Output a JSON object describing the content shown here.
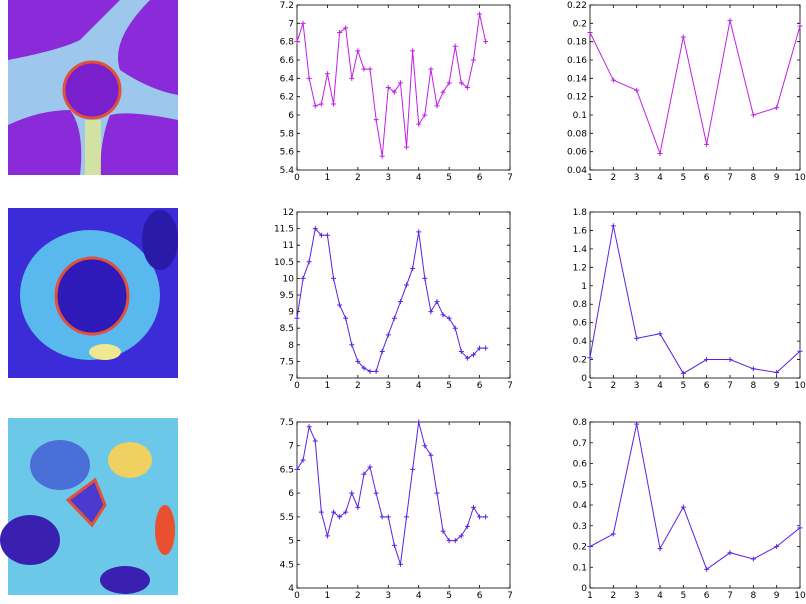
{
  "chart_data": [
    {
      "type": "line",
      "color": "#c21fe6",
      "xlim": [
        0,
        7
      ],
      "xticks": [
        0,
        1,
        2,
        3,
        4,
        5,
        6,
        7
      ],
      "ylim": [
        5.4,
        7.2
      ],
      "yticks": [
        5.4,
        5.6,
        5.8,
        6,
        6.2,
        6.4,
        6.6,
        6.8,
        7,
        7.2
      ],
      "x": [
        0,
        0.2,
        0.4,
        0.6,
        0.8,
        1,
        1.2,
        1.4,
        1.6,
        1.8,
        2,
        2.2,
        2.4,
        2.6,
        2.8,
        3,
        3.2,
        3.4,
        3.6,
        3.8,
        4,
        4.2,
        4.4,
        4.6,
        4.8,
        5,
        5.2,
        5.4,
        5.6,
        5.8,
        6,
        6.2
      ],
      "values": [
        6.8,
        7.0,
        6.4,
        6.1,
        6.12,
        6.45,
        6.12,
        6.9,
        6.95,
        6.4,
        6.7,
        6.5,
        6.5,
        5.95,
        5.55,
        6.3,
        6.25,
        6.35,
        5.65,
        6.7,
        5.9,
        6.0,
        6.5,
        6.1,
        6.25,
        6.35,
        6.75,
        6.35,
        6.3,
        6.6,
        7.1,
        6.8
      ]
    },
    {
      "type": "line",
      "color": "#c21fe6",
      "xlim": [
        1,
        10
      ],
      "xticks": [
        1,
        2,
        3,
        4,
        5,
        6,
        7,
        8,
        9,
        10
      ],
      "ylim": [
        0.04,
        0.22
      ],
      "yticks": [
        0.04,
        0.06,
        0.08,
        0.1,
        0.12,
        0.14,
        0.16,
        0.18,
        0.2,
        0.22
      ],
      "x": [
        1,
        2,
        3,
        4,
        5,
        6,
        7,
        8,
        9,
        10
      ],
      "values": [
        0.19,
        0.138,
        0.127,
        0.058,
        0.185,
        0.068,
        0.203,
        0.1,
        0.108,
        0.197
      ]
    },
    {
      "type": "line",
      "color": "#5b22e0",
      "xlim": [
        0,
        7
      ],
      "xticks": [
        0,
        1,
        2,
        3,
        4,
        5,
        6,
        7
      ],
      "ylim": [
        7,
        12
      ],
      "yticks": [
        7,
        7.5,
        8,
        8.5,
        9,
        9.5,
        10,
        10.5,
        11,
        11.5,
        12
      ],
      "x": [
        0,
        0.2,
        0.4,
        0.6,
        0.8,
        1,
        1.2,
        1.4,
        1.6,
        1.8,
        2,
        2.2,
        2.4,
        2.6,
        2.8,
        3,
        3.2,
        3.4,
        3.6,
        3.8,
        4,
        4.2,
        4.4,
        4.6,
        4.8,
        5,
        5.2,
        5.4,
        5.6,
        5.8,
        6,
        6.2
      ],
      "values": [
        8.8,
        10,
        10.5,
        11.5,
        11.3,
        11.3,
        10,
        9.2,
        8.8,
        8.0,
        7.5,
        7.3,
        7.2,
        7.2,
        7.8,
        8.3,
        8.8,
        9.3,
        9.8,
        10.3,
        11.4,
        10.0,
        9.0,
        9.3,
        8.9,
        8.8,
        8.5,
        7.8,
        7.6,
        7.7,
        7.9,
        7.9
      ]
    },
    {
      "type": "line",
      "color": "#5b22e0",
      "xlim": [
        1,
        10
      ],
      "xticks": [
        1,
        2,
        3,
        4,
        5,
        6,
        7,
        8,
        9,
        10
      ],
      "ylim": [
        0,
        1.8
      ],
      "yticks": [
        0,
        0.2,
        0.4,
        0.6,
        0.8,
        1,
        1.2,
        1.4,
        1.6,
        1.8
      ],
      "x": [
        1,
        2,
        3,
        4,
        5,
        6,
        7,
        8,
        9,
        10
      ],
      "values": [
        0.22,
        1.65,
        0.43,
        0.48,
        0.05,
        0.2,
        0.2,
        0.1,
        0.06,
        0.29
      ]
    },
    {
      "type": "line",
      "color": "#5b22e0",
      "xlim": [
        0,
        7
      ],
      "xticks": [
        0,
        1,
        2,
        3,
        4,
        5,
        6,
        7
      ],
      "ylim": [
        4,
        7.5
      ],
      "yticks": [
        4,
        4.5,
        5,
        5.5,
        6,
        6.5,
        7,
        7.5
      ],
      "x": [
        0,
        0.2,
        0.4,
        0.6,
        0.8,
        1,
        1.2,
        1.4,
        1.6,
        1.8,
        2,
        2.2,
        2.4,
        2.6,
        2.8,
        3,
        3.2,
        3.4,
        3.6,
        3.8,
        4,
        4.2,
        4.4,
        4.6,
        4.8,
        5,
        5.2,
        5.4,
        5.6,
        5.8,
        6,
        6.2
      ],
      "values": [
        6.5,
        6.7,
        7.4,
        7.1,
        5.6,
        5.1,
        5.6,
        5.5,
        5.6,
        6.0,
        5.7,
        6.4,
        6.55,
        6.0,
        5.5,
        5.5,
        4.9,
        4.5,
        5.5,
        6.5,
        7.5,
        7.0,
        6.8,
        6.0,
        5.2,
        5.0,
        5.0,
        5.1,
        5.3,
        5.7,
        5.5,
        5.5
      ]
    },
    {
      "type": "line",
      "color": "#5b22e0",
      "xlim": [
        1,
        10
      ],
      "xticks": [
        1,
        2,
        3,
        4,
        5,
        6,
        7,
        8,
        9,
        10
      ],
      "ylim": [
        0,
        0.8
      ],
      "yticks": [
        0,
        0.1,
        0.2,
        0.3,
        0.4,
        0.5,
        0.6,
        0.7,
        0.8
      ],
      "x": [
        1,
        2,
        3,
        4,
        5,
        6,
        7,
        8,
        9,
        10
      ],
      "values": [
        0.2,
        0.26,
        0.79,
        0.19,
        0.39,
        0.09,
        0.17,
        0.14,
        0.2,
        0.29
      ]
    }
  ]
}
